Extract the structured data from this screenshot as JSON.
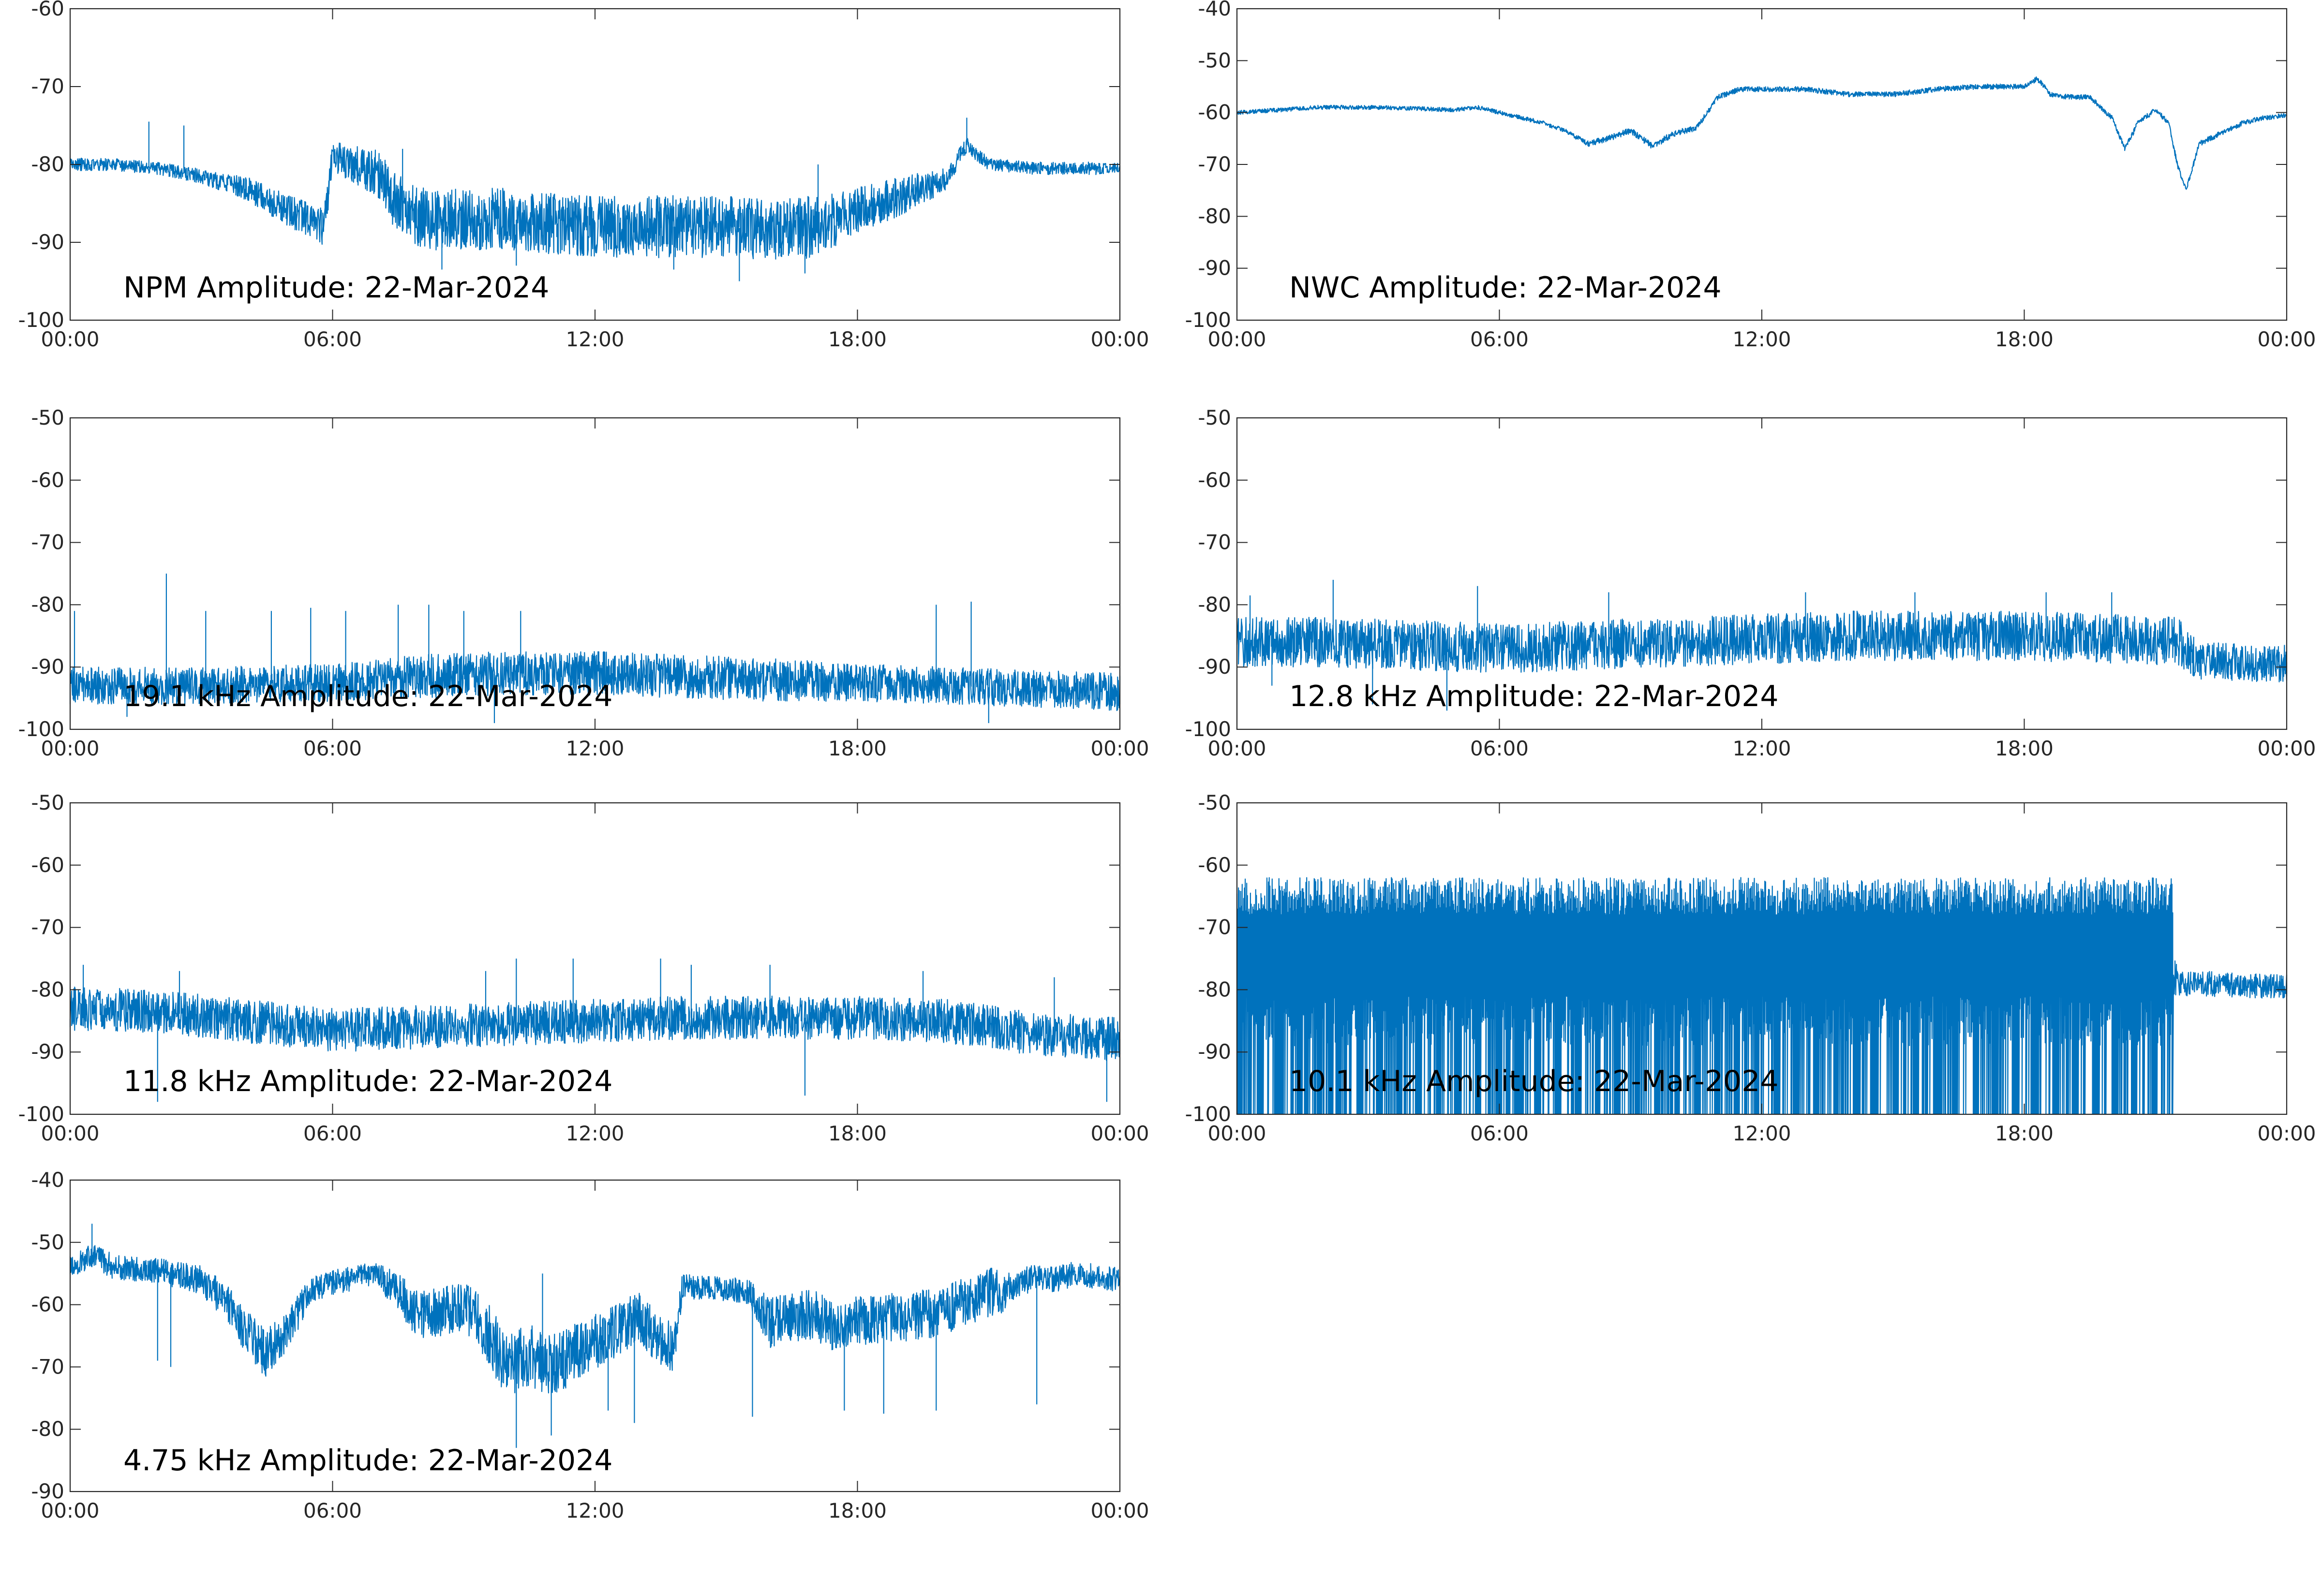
{
  "figure": {
    "line_color": "#0072BD",
    "axis_color": "#262626"
  },
  "chart_data": [
    {
      "type": "line",
      "title": "NPM Amplitude: 22-Mar-2024",
      "ylim": [
        -100,
        -60
      ],
      "yticks": [
        "-60",
        "-70",
        "-80",
        "-90",
        "-100"
      ],
      "xticks": [
        "00:00",
        "06:00",
        "12:00",
        "18:00",
        "00:00"
      ],
      "x_hours": [
        0,
        1,
        2,
        3,
        4,
        5,
        5.8,
        6,
        6.5,
        7,
        7.5,
        8,
        9,
        10,
        11,
        12,
        13,
        14,
        15,
        16,
        17,
        17.5,
        18,
        19,
        20,
        20.5,
        21,
        22,
        23,
        24
      ],
      "center": [
        -80,
        -80,
        -80.5,
        -81.5,
        -83,
        -86,
        -88,
        -79,
        -80,
        -81,
        -85,
        -87,
        -87,
        -87,
        -87.5,
        -88,
        -88,
        -88,
        -88,
        -88.5,
        -88,
        -87,
        -86,
        -84,
        -82,
        -77.5,
        -80,
        -80.5,
        -80.5,
        -80.5
      ],
      "spread": [
        0.8,
        0.8,
        0.8,
        1,
        1.5,
        2,
        2.5,
        2,
        2.5,
        3,
        4,
        4,
        4,
        4,
        4,
        4,
        4,
        4,
        4,
        4,
        4,
        3.5,
        3,
        2.5,
        1.5,
        1,
        0.8,
        0.8,
        0.8,
        0.8
      ],
      "spikes": [
        [
          1.8,
          -74.5
        ],
        [
          2.6,
          -75
        ],
        [
          7.6,
          -78
        ],
        [
          8.5,
          -93.5
        ],
        [
          10.2,
          -93
        ],
        [
          13.8,
          -93.5
        ],
        [
          15.3,
          -95
        ],
        [
          16.8,
          -94
        ],
        [
          17.1,
          -80
        ],
        [
          20.5,
          -74
        ]
      ]
    },
    {
      "type": "line",
      "title": "NWC Amplitude: 22-Mar-2024",
      "ylim": [
        -100,
        -40
      ],
      "yticks": [
        "-40",
        "-50",
        "-60",
        "-70",
        "-80",
        "-90",
        "-100"
      ],
      "xticks": [
        "00:00",
        "06:00",
        "12:00",
        "18:00",
        "00:00"
      ],
      "x_hours": [
        0,
        1,
        1.8,
        2,
        3,
        4,
        5,
        5.5,
        6,
        6.5,
        7,
        7.5,
        8,
        8.5,
        9,
        9.5,
        10,
        10.5,
        11,
        11.5,
        12,
        13,
        14,
        15,
        16,
        17,
        17.5,
        18,
        18.3,
        18.6,
        19,
        19.5,
        20,
        20.3,
        20.6,
        21,
        21.3,
        21.5,
        21.7,
        22,
        22.5,
        23,
        23.5,
        24
      ],
      "center": [
        -60,
        -59.5,
        -59,
        -59,
        -59,
        -59.2,
        -59.5,
        -59,
        -60,
        -61,
        -62,
        -63.5,
        -66,
        -65,
        -63.5,
        -66.5,
        -64,
        -63,
        -57,
        -55.5,
        -55.5,
        -55.5,
        -56.5,
        -56.5,
        -55.5,
        -55,
        -55,
        -55,
        -53.5,
        -56.5,
        -57,
        -57,
        -61,
        -67,
        -62,
        -59.5,
        -62,
        -70,
        -75,
        -66,
        -64,
        -62,
        -61,
        -60.5
      ],
      "spread": [
        0.4,
        0.4,
        0.4,
        0.4,
        0.4,
        0.4,
        0.4,
        0.4,
        0.4,
        0.4,
        0.4,
        0.4,
        0.6,
        0.6,
        0.6,
        0.6,
        0.6,
        0.5,
        0.5,
        0.5,
        0.5,
        0.5,
        0.5,
        0.5,
        0.5,
        0.5,
        0.5,
        0.5,
        0.5,
        0.5,
        0.5,
        0.5,
        0.5,
        0.5,
        0.5,
        0.5,
        0.5,
        0.5,
        0.5,
        0.5,
        0.5,
        0.5,
        0.5,
        0.4
      ],
      "spikes": []
    },
    {
      "type": "line",
      "title": "19.1 kHz Amplitude: 22-Mar-2024",
      "ylim": [
        -100,
        -50
      ],
      "yticks": [
        "-50",
        "-60",
        "-70",
        "-80",
        "-90",
        "-100"
      ],
      "xticks": [
        "00:00",
        "06:00",
        "12:00",
        "18:00",
        "00:00"
      ],
      "x_hours": [
        0,
        3,
        6,
        8,
        10,
        12,
        14,
        16,
        18,
        20,
        22,
        24
      ],
      "center": [
        -93,
        -93,
        -92.5,
        -91.5,
        -91,
        -91,
        -91.5,
        -92,
        -92.5,
        -93,
        -93.5,
        -94
      ],
      "spread": [
        3,
        3,
        3,
        3.5,
        3.5,
        3.5,
        3.5,
        3.5,
        3,
        3,
        3,
        3
      ],
      "spikes": [
        [
          0.1,
          -81
        ],
        [
          2.2,
          -75
        ],
        [
          3.1,
          -81
        ],
        [
          4.6,
          -81
        ],
        [
          5.5,
          -80.5
        ],
        [
          6.3,
          -81
        ],
        [
          7.5,
          -80
        ],
        [
          8.2,
          -80
        ],
        [
          9.0,
          -81
        ],
        [
          10.3,
          -81
        ],
        [
          19.8,
          -80
        ],
        [
          20.6,
          -79.5
        ],
        [
          1.3,
          -98
        ],
        [
          9.7,
          -99
        ],
        [
          21.0,
          -99
        ]
      ]
    },
    {
      "type": "line",
      "title": "12.8 kHz Amplitude: 22-Mar-2024",
      "ylim": [
        -100,
        -50
      ],
      "yticks": [
        "-50",
        "-60",
        "-70",
        "-80",
        "-90",
        "-100"
      ],
      "xticks": [
        "00:00",
        "06:00",
        "12:00",
        "18:00",
        "00:00"
      ],
      "x_hours": [
        0,
        2,
        4,
        6,
        8,
        10,
        12,
        14,
        16,
        18,
        20,
        21.5,
        22,
        24
      ],
      "center": [
        -86,
        -86,
        -86.5,
        -87,
        -86.5,
        -86,
        -85.5,
        -85,
        -85,
        -85,
        -85.5,
        -86,
        -89,
        -89.5
      ],
      "spread": [
        4,
        4,
        4,
        4,
        4,
        4,
        4,
        4,
        4,
        4,
        4,
        4,
        3,
        3
      ],
      "spikes": [
        [
          2.2,
          -76
        ],
        [
          0.3,
          -78.5
        ],
        [
          5.5,
          -77
        ],
        [
          8.5,
          -78
        ],
        [
          13.0,
          -78
        ],
        [
          15.5,
          -78
        ],
        [
          18.5,
          -78
        ],
        [
          20.0,
          -78
        ],
        [
          3.1,
          -96
        ],
        [
          4.8,
          -97
        ],
        [
          0.8,
          -93
        ]
      ]
    },
    {
      "type": "line",
      "title": "11.8 kHz Amplitude: 22-Mar-2024",
      "ylim": [
        -100,
        -50
      ],
      "yticks": [
        "-50",
        "-60",
        "-70",
        "-80",
        "-90",
        "-100"
      ],
      "xticks": [
        "00:00",
        "06:00",
        "12:00",
        "18:00",
        "00:00"
      ],
      "x_hours": [
        0,
        2,
        4,
        6,
        8,
        10,
        12,
        14,
        16,
        18,
        20,
        22,
        24
      ],
      "center": [
        -83,
        -83.5,
        -85,
        -86.5,
        -86,
        -85.5,
        -85,
        -84.5,
        -84.5,
        -84.5,
        -85,
        -87,
        -88
      ],
      "spread": [
        3.5,
        3.5,
        3.5,
        3.5,
        3.5,
        3.5,
        3.5,
        3.5,
        3.5,
        3.5,
        3.5,
        3.5,
        3.5
      ],
      "spikes": [
        [
          0.3,
          -76
        ],
        [
          2.5,
          -77
        ],
        [
          9.5,
          -77
        ],
        [
          10.2,
          -75
        ],
        [
          11.5,
          -75
        ],
        [
          13.5,
          -75
        ],
        [
          14.2,
          -76
        ],
        [
          16.0,
          -76
        ],
        [
          19.5,
          -77
        ],
        [
          22.5,
          -78
        ],
        [
          2.0,
          -98
        ],
        [
          16.8,
          -97
        ],
        [
          23.7,
          -98
        ]
      ]
    },
    {
      "type": "line",
      "title": "10.1 kHz Amplitude: 22-Mar-2024",
      "ylim": [
        -100,
        -50
      ],
      "yticks": [
        "-50",
        "-60",
        "-70",
        "-80",
        "-90",
        "-100"
      ],
      "xticks": [
        "00:00",
        "06:00",
        "12:00",
        "18:00",
        "00:00"
      ],
      "x_hours": [
        0,
        21.4,
        21.5,
        22,
        24
      ],
      "center": [
        -76,
        -76,
        -79,
        -79,
        -79.5
      ],
      "spread": [
        5,
        5,
        2,
        2,
        2
      ],
      "dropouts": {
        "from_hour": 0,
        "to_hour": 21.4
      },
      "spikes": []
    },
    {
      "type": "line",
      "title": "4.75 kHz Amplitude: 22-Mar-2024",
      "ylim": [
        -90,
        -40
      ],
      "yticks": [
        "-40",
        "-50",
        "-60",
        "-70",
        "-80",
        "-90"
      ],
      "xticks": [
        "00:00",
        "06:00",
        "12:00",
        "18:00",
        "00:00"
      ],
      "x_hours": [
        0,
        0.5,
        1,
        2,
        3,
        3.5,
        4,
        4.5,
        5,
        5.5,
        6,
        7,
        7.5,
        8,
        9,
        9.5,
        10,
        10.5,
        11,
        12,
        13,
        13.5,
        13.8,
        14,
        15,
        15.5,
        16,
        16.5,
        17,
        17.5,
        18,
        19,
        20,
        21,
        21.5,
        22,
        22.5,
        23,
        24
      ],
      "center": [
        -54,
        -52,
        -54,
        -54.5,
        -56,
        -59,
        -64,
        -68,
        -64,
        -57.5,
        -56.5,
        -55,
        -58,
        -62,
        -60,
        -64,
        -70,
        -68,
        -70,
        -66,
        -62,
        -66,
        -67,
        -57,
        -57.5,
        -58,
        -63,
        -62,
        -61.5,
        -64,
        -62.5,
        -62,
        -61,
        -58,
        -58,
        -55.5,
        -56,
        -55,
        -56
      ],
      "spread": [
        2,
        2,
        2,
        2,
        2.5,
        3,
        3.5,
        4,
        3.5,
        2,
        2,
        2,
        3,
        4,
        4,
        5,
        5,
        5,
        5,
        4.5,
        4,
        4,
        4,
        2,
        2,
        2,
        4,
        4,
        4,
        4,
        4,
        4,
        4,
        4,
        3,
        2,
        2,
        2,
        2
      ],
      "spikes": [
        [
          0.5,
          -47
        ],
        [
          2.0,
          -69
        ],
        [
          2.3,
          -70
        ],
        [
          10.2,
          -83
        ],
        [
          11.0,
          -81
        ],
        [
          12.3,
          -77
        ],
        [
          12.9,
          -79
        ],
        [
          15.6,
          -78
        ],
        [
          17.7,
          -77
        ],
        [
          18.6,
          -77.5
        ],
        [
          19.8,
          -77
        ],
        [
          22.1,
          -76
        ],
        [
          10.8,
          -55
        ]
      ]
    }
  ]
}
